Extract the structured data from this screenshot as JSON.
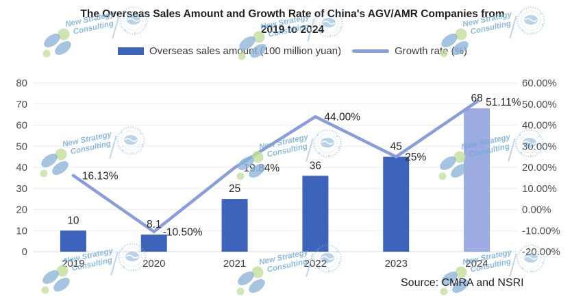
{
  "title": {
    "line1": "The Overseas Sales Amount and Growth Rate of China's AGV/AMR Companies from",
    "line2": "2019 to 2024"
  },
  "legend": {
    "bar_label": "Overseas sales amount (100 million yuan)",
    "line_label": "Growth rate (%)"
  },
  "source_text": "Source: CMRA and NSRI",
  "watermark": {
    "line1": "New Strategy",
    "line2": "Consulting"
  },
  "colors": {
    "bar": "#3D63BA",
    "bar_highlight": "#9CACE2",
    "line": "#8A9CDC",
    "grid": "#ECECEC",
    "baseline": "#D8D8D8",
    "axis_text": "#4C4C4C",
    "label_text": "#262626",
    "year_text": "#3D3D3D",
    "watermark_blue": "#8BB4DA",
    "watermark_green": "#C3DE9B",
    "stamp_blue": "#7FB0DC"
  },
  "chart_data": {
    "type": "bar+line combo",
    "title": "The Overseas Sales Amount and Growth Rate of China's AGV/AMR Companies from 2019 to 2024",
    "categories": [
      "2019",
      "2020",
      "2021",
      "2022",
      "2023",
      "2024"
    ],
    "series": [
      {
        "name": "Overseas sales amount (100 million yuan)",
        "type": "bar",
        "axis": "left",
        "values": [
          10,
          8.1,
          25,
          36,
          45,
          68
        ],
        "labels": [
          "10",
          "8.1",
          "25",
          "36",
          "45",
          "68"
        ],
        "highlight_index": 5
      },
      {
        "name": "Growth rate (%)",
        "type": "line",
        "axis": "right",
        "values": [
          16.13,
          -10.5,
          19.84,
          44.0,
          25,
          51.11
        ],
        "labels": [
          "16.13%",
          "-10.50%",
          "19.84%",
          "44.00%",
          "25%",
          "51.11%"
        ]
      }
    ],
    "left_axis": {
      "min": 0,
      "max": 80,
      "step": 10,
      "ticks_top_to_bottom": [
        "80",
        "70",
        "60",
        "50",
        "40",
        "30",
        "20",
        "10",
        "0"
      ]
    },
    "right_axis": {
      "min": -20,
      "max": 60,
      "step": 10,
      "ticks_top_to_bottom": [
        "60.00%",
        "50.00%",
        "40.00%",
        "30.00%",
        "20.00%",
        "10.00%",
        "0.00%",
        "-10.00%",
        "-20.00%"
      ]
    },
    "grid": "horizontal",
    "legend_position": "top",
    "source": "Source: CMRA and NSRI"
  }
}
